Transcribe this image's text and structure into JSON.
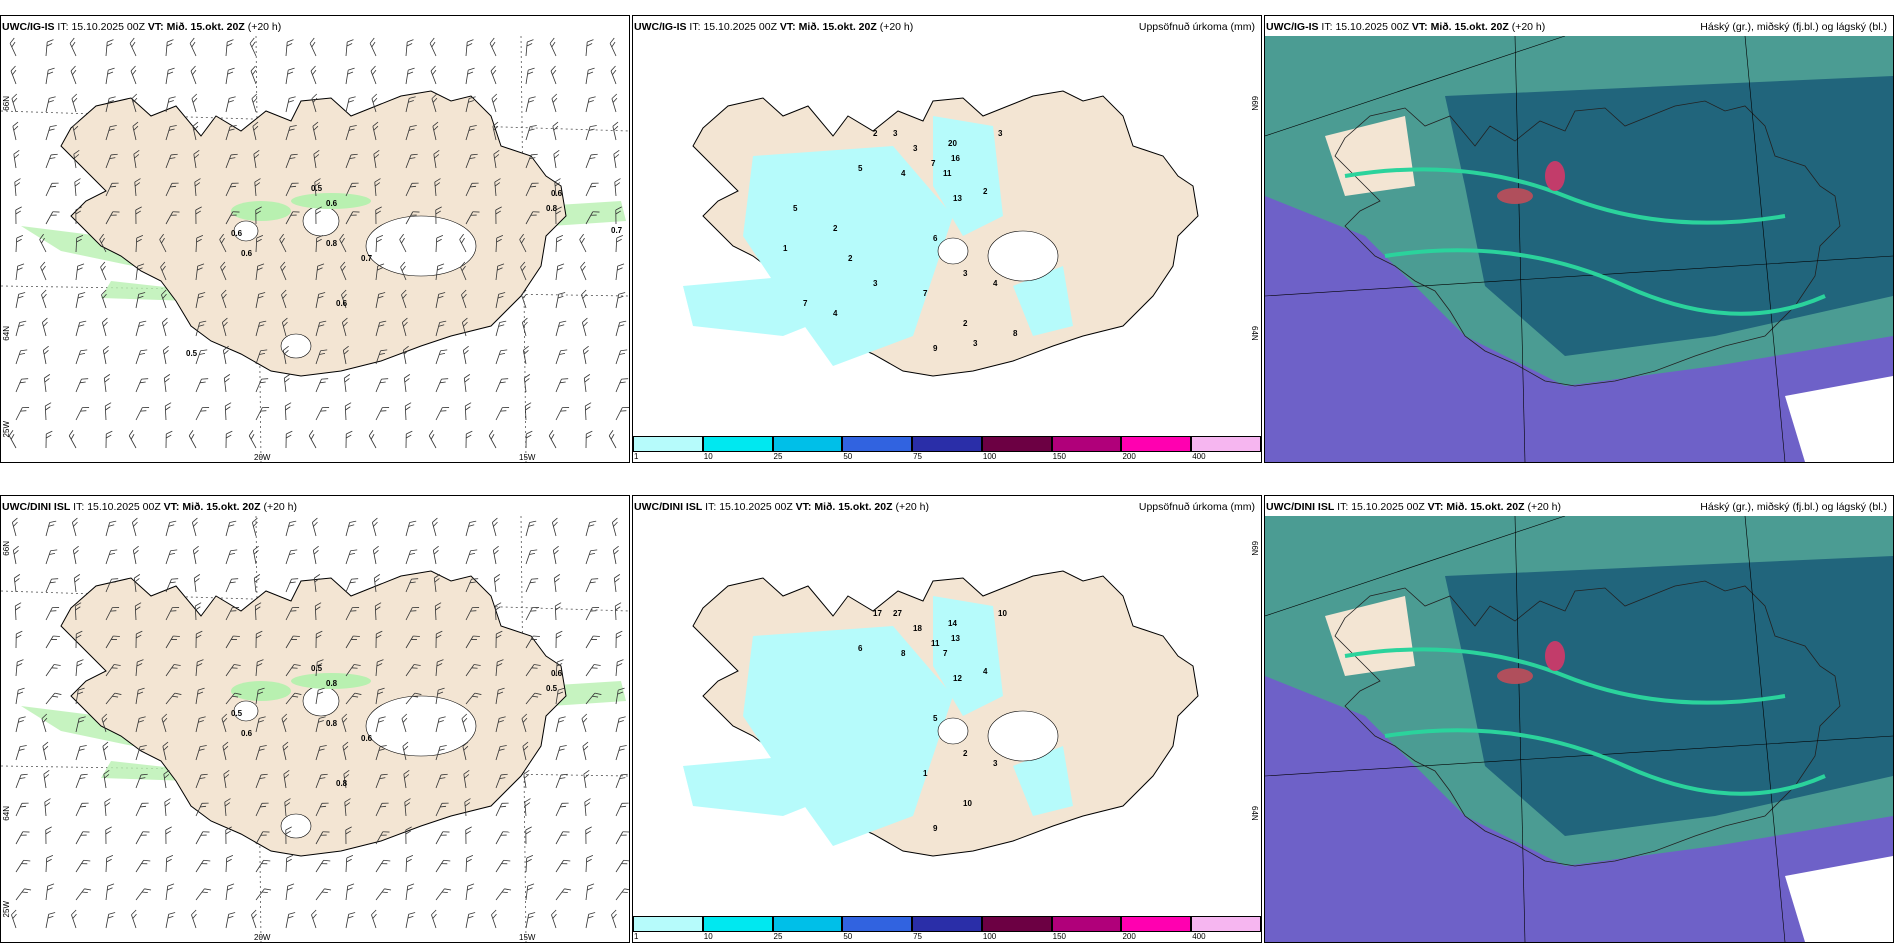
{
  "rows": [
    {
      "model": "UWC/IG-IS",
      "it_label": "IT:",
      "it_value": "15.10.2025 00Z",
      "vt_label": "VT:",
      "vt_value": "Mið. 15.okt. 20Z",
      "lead": "(+20 h)"
    },
    {
      "model": "UWC/DINI ISL",
      "it_label": "IT:",
      "it_value": "15.10.2025 00Z",
      "vt_label": "VT:",
      "vt_value": "Mið. 15.okt. 20Z",
      "lead": "(+20 h)"
    }
  ],
  "precip_title": "Uppsöfnuð úrkoma (mm)",
  "cloud_title": "Háský (gr.), miðský (fj.bl.) og lágský (bl.)",
  "coords": {
    "lat66": "66N",
    "lat64": "64N",
    "lon25": "25W",
    "lon20": "20W",
    "lon15": "15W"
  },
  "colorbar": {
    "ticks": [
      "1",
      "10",
      "25",
      "50",
      "75",
      "100",
      "150",
      "200",
      "400"
    ],
    "colors": [
      "#b6fbfb",
      "#00e8f0",
      "#00bfe8",
      "#3163e0",
      "#2a2ea8",
      "#6c0043",
      "#b0007a",
      "#ff00b0",
      "#f6b6f0"
    ]
  },
  "colors": {
    "land": "#f3e5d3",
    "sea": "#ffffff",
    "green": "#b8f0b0",
    "cyan": "#b6fbfb"
  },
  "wind_labels_top": [
    "0.5",
    "0.6",
    "0.6",
    "0.8",
    "0.6",
    "0.7",
    "0.6",
    "0.6",
    "0.8",
    "0.7",
    "0.5"
  ],
  "wind_labels_bottom": [
    "0.5",
    "0.8",
    "0.5",
    "0.8",
    "0.6",
    "0.6",
    "0.8",
    "0.6",
    "0.5"
  ],
  "precip_labels_top": [
    "2",
    "3",
    "3",
    "20",
    "16",
    "11",
    "13",
    "2",
    "3",
    "7",
    "4",
    "5",
    "6",
    "3",
    "4",
    "7",
    "2",
    "9",
    "3",
    "8",
    "7",
    "4",
    "5",
    "2",
    "2",
    "3",
    "1"
  ],
  "precip_labels_bottom": [
    "17",
    "27",
    "18",
    "14",
    "13",
    "7",
    "12",
    "4",
    "10",
    "11",
    "8",
    "6",
    "5",
    "2",
    "3",
    "1",
    "10",
    "9"
  ]
}
